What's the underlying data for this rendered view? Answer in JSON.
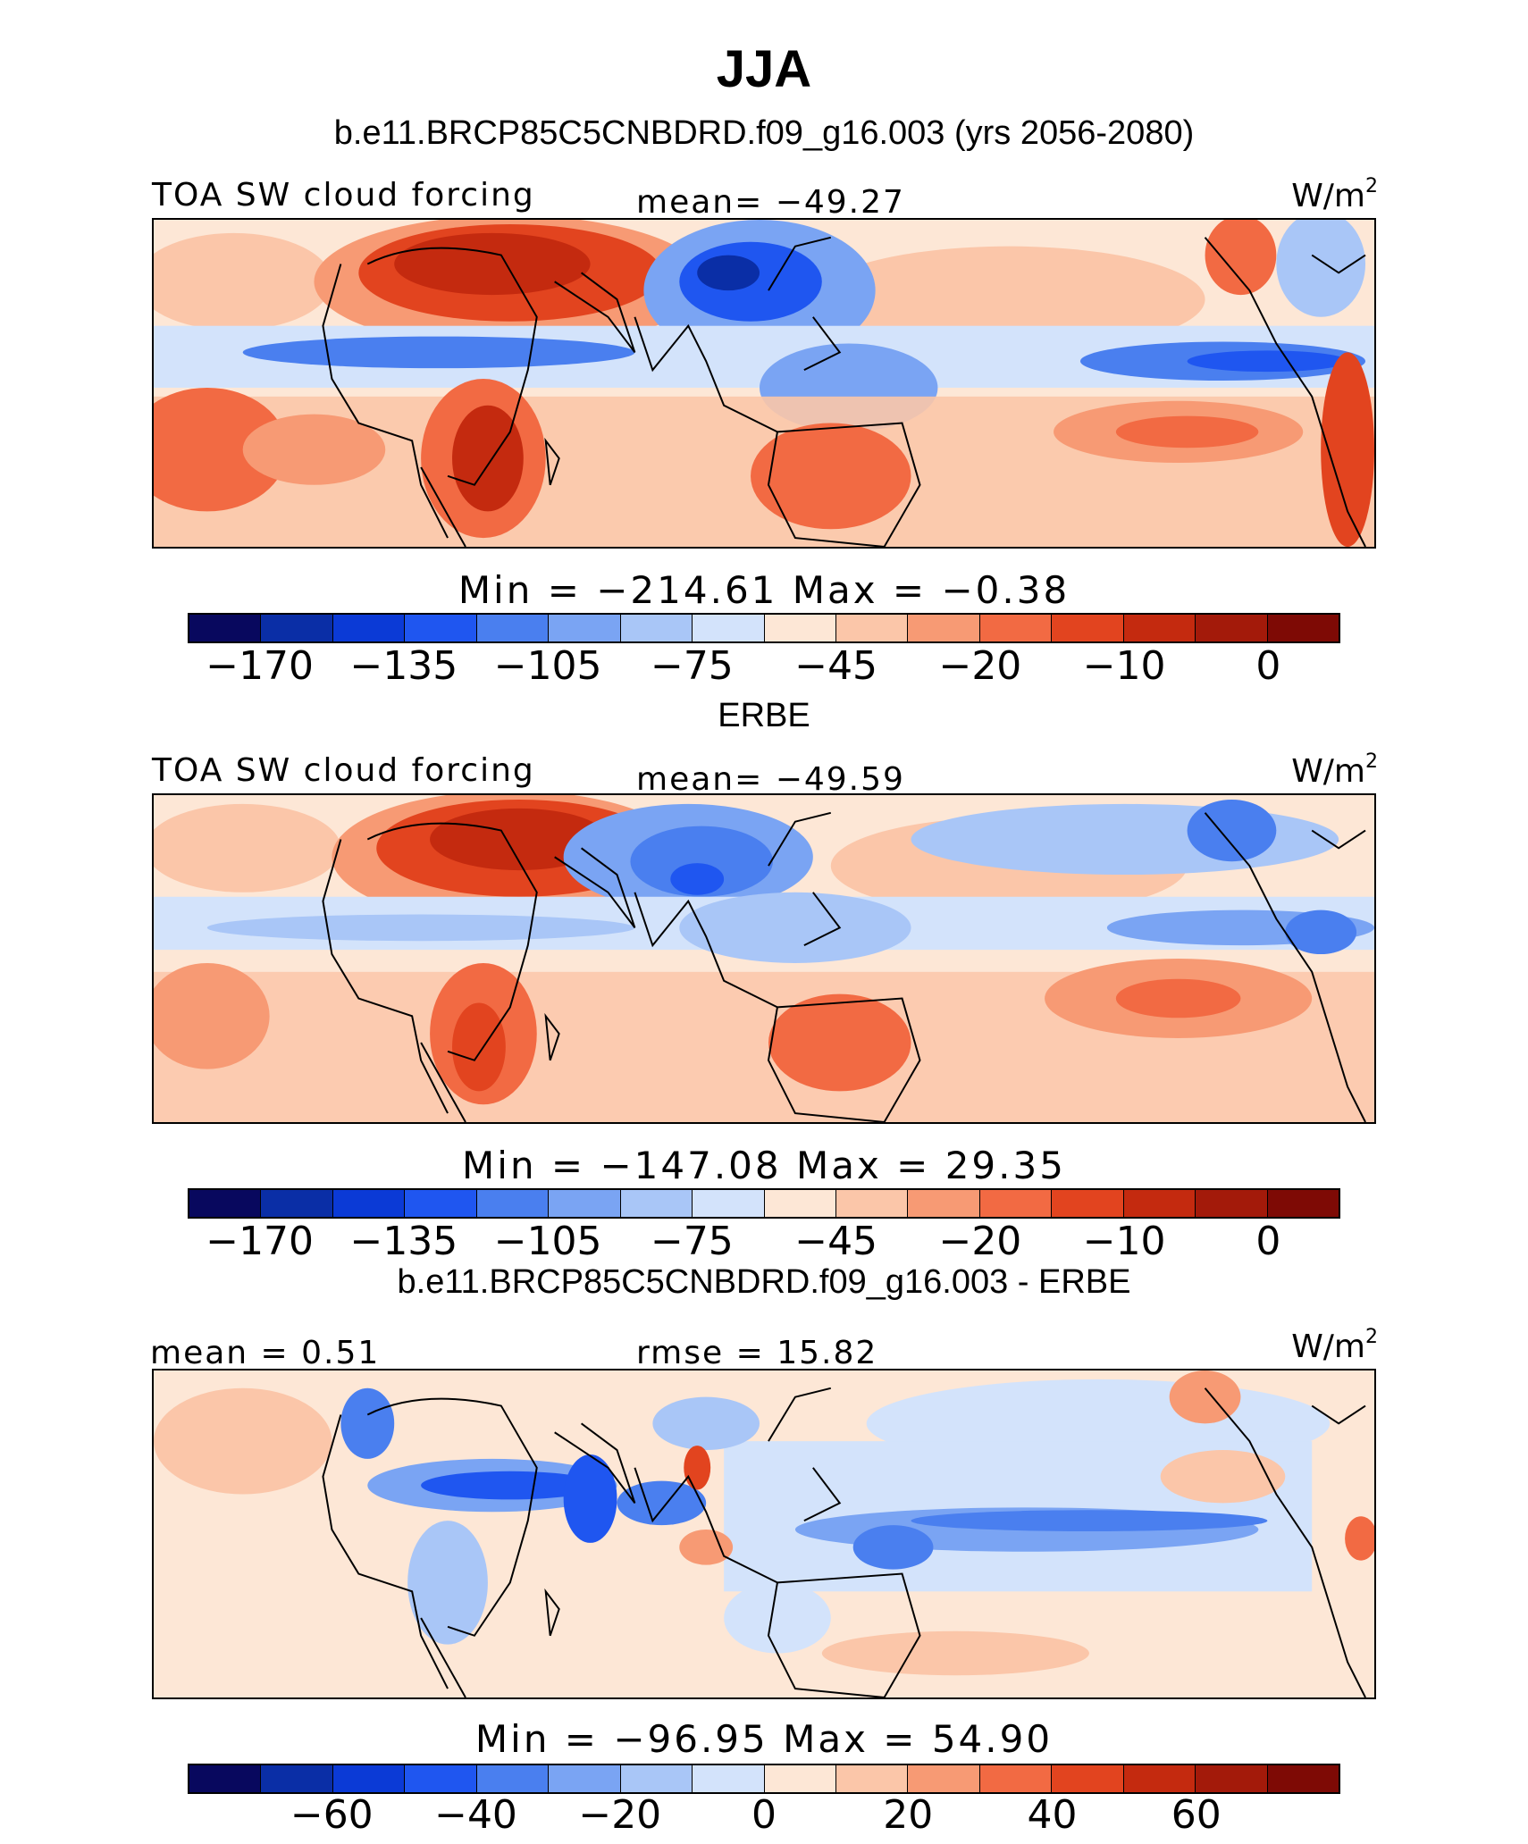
{
  "title": "JJA",
  "panel1": {
    "heading": "b.e11.BRCP85C5CNBDRD.f09_g16.003 (yrs 2056-2080)",
    "left_label": "TOA SW cloud forcing",
    "center_label": "mean= −49.27",
    "unit": "W/m",
    "unit_sup": "2",
    "minmax": "Min = −214.61 Max =  −0.38",
    "colorbar_ticks": [
      "−170",
      "−135",
      "−105",
      "−75",
      "−45",
      "−20",
      "−10",
      "0"
    ]
  },
  "panel2": {
    "heading": "ERBE",
    "left_label": "TOA SW cloud forcing",
    "center_label": "mean= −49.59",
    "unit": "W/m",
    "unit_sup": "2",
    "minmax": "Min = −147.08 Max =  29.35",
    "colorbar_ticks": [
      "−170",
      "−135",
      "−105",
      "−75",
      "−45",
      "−20",
      "−10",
      "0"
    ]
  },
  "panel3": {
    "heading": "b.e11.BRCP85C5CNBDRD.f09_g16.003 - ERBE",
    "left_label": "mean =   0.51",
    "center_label": "rmse =  15.82",
    "unit": "W/m",
    "unit_sup": "2",
    "minmax": "Min = −96.95 Max =  54.90",
    "colorbar_ticks": [
      "−60",
      "−40",
      "−20",
      "0",
      "20",
      "40",
      "60"
    ]
  },
  "colors": {
    "colorbar": [
      "#08085e",
      "#0a2ea6",
      "#0b3ad6",
      "#1f56f0",
      "#4a7fef",
      "#7aa4f3",
      "#a9c6f7",
      "#d3e3fb",
      "#fde7d6",
      "#fbc6a9",
      "#f79a74",
      "#f26a43",
      "#e2441f",
      "#c42a0f",
      "#a31a0a",
      "#7e0a05"
    ],
    "ocean_neutral": "#fde7d6"
  }
}
